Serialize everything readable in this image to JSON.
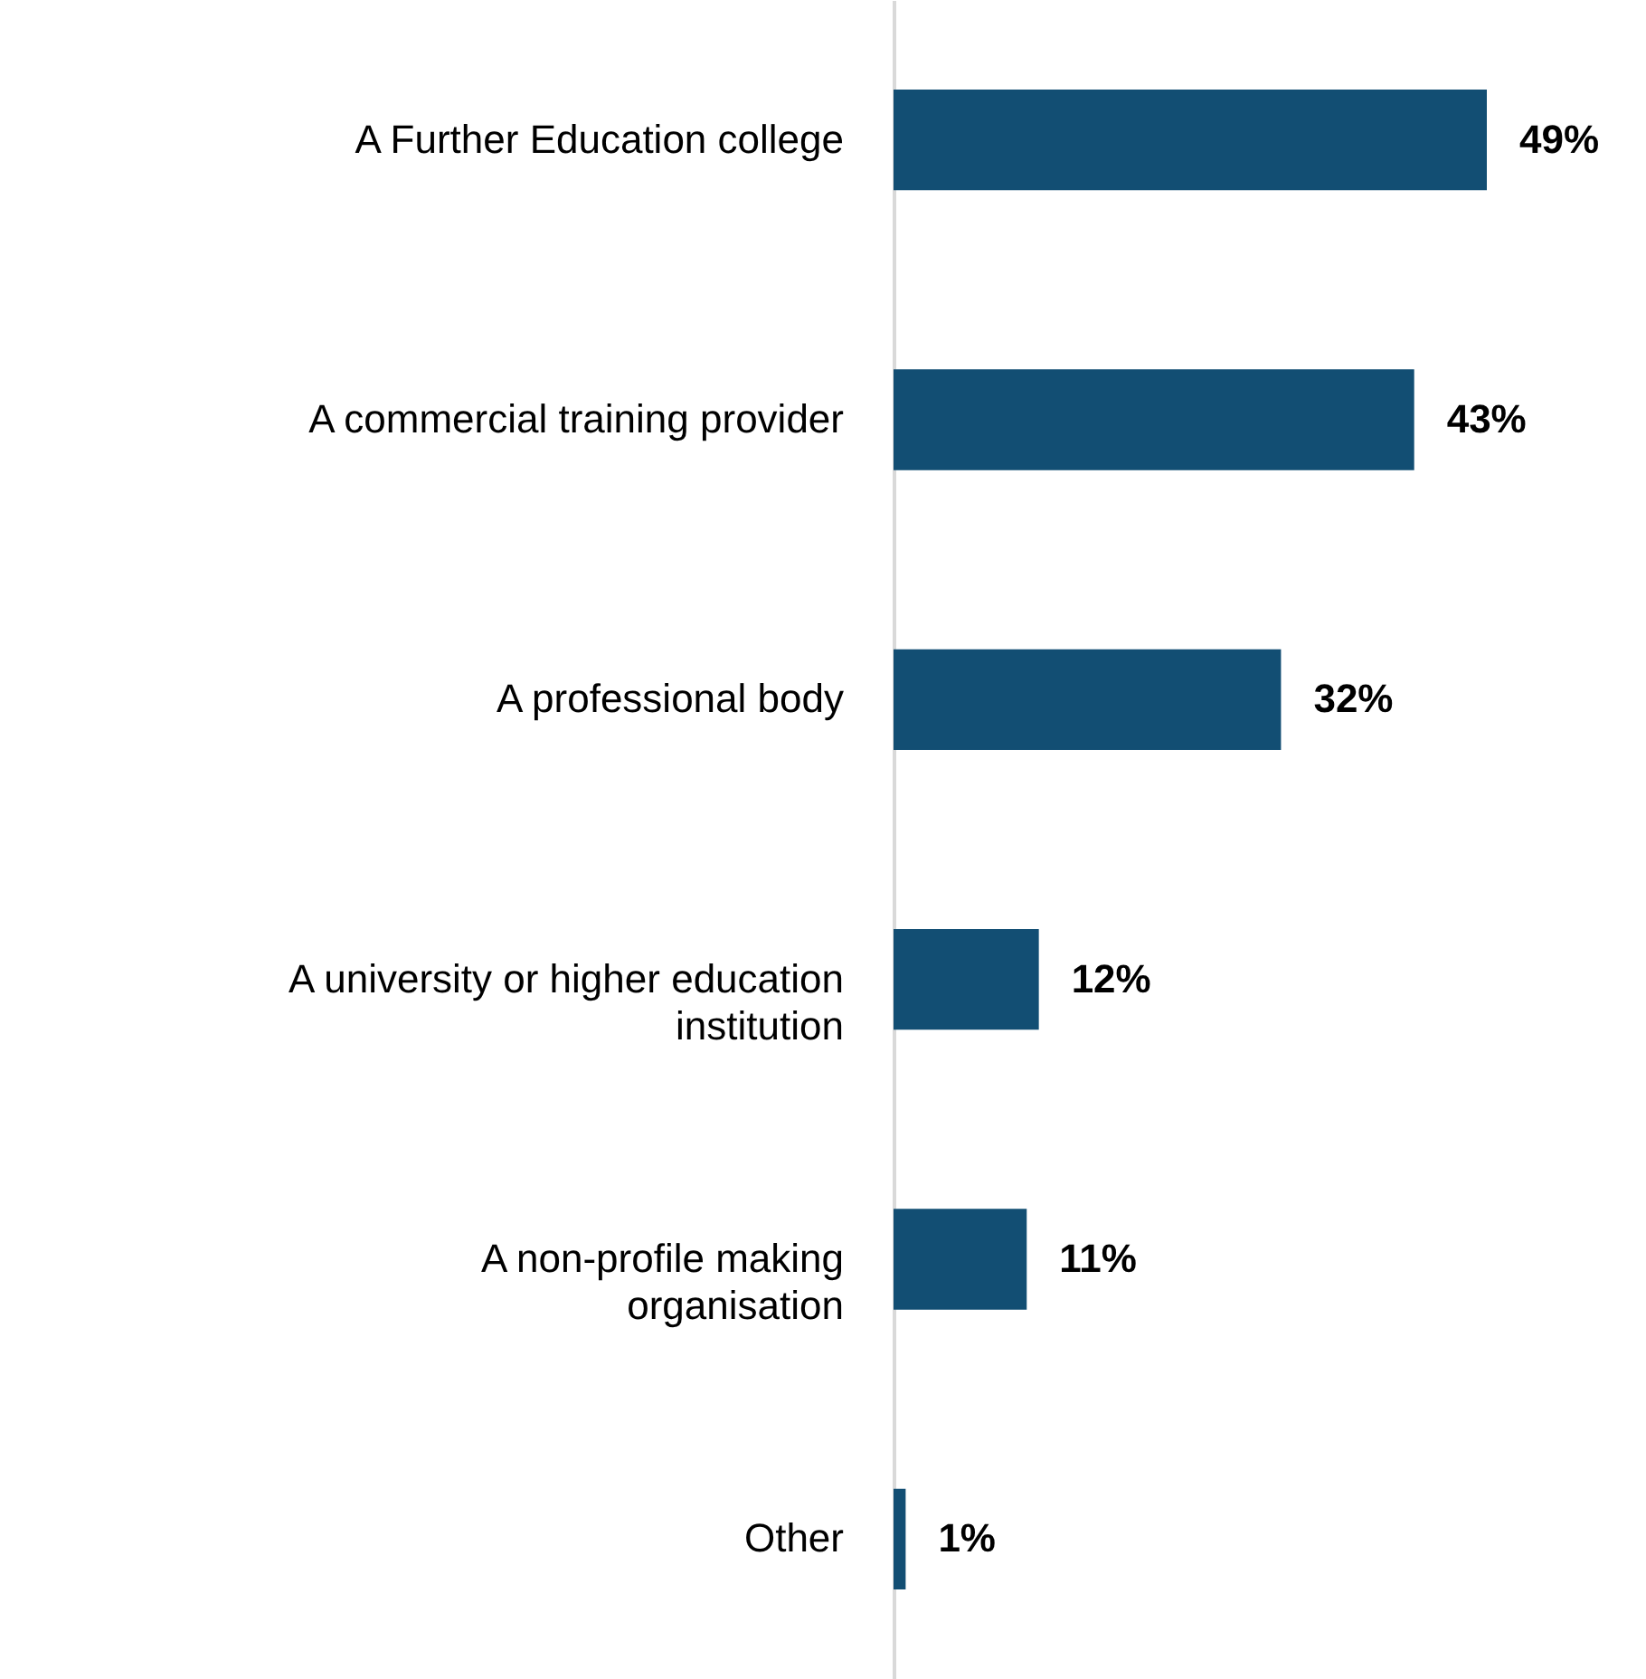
{
  "chart_data": {
    "type": "bar",
    "orientation": "horizontal",
    "categories": [
      "A Further Education college",
      "A commercial training provider",
      "A professional body",
      "A university or higher education institution",
      "A non-profile making organisation",
      "Other"
    ],
    "values": [
      49,
      43,
      32,
      12,
      11,
      1
    ],
    "value_labels": [
      "49%",
      "43%",
      "32%",
      "12%",
      "11%",
      "1%"
    ],
    "color": "#124e73"
  }
}
